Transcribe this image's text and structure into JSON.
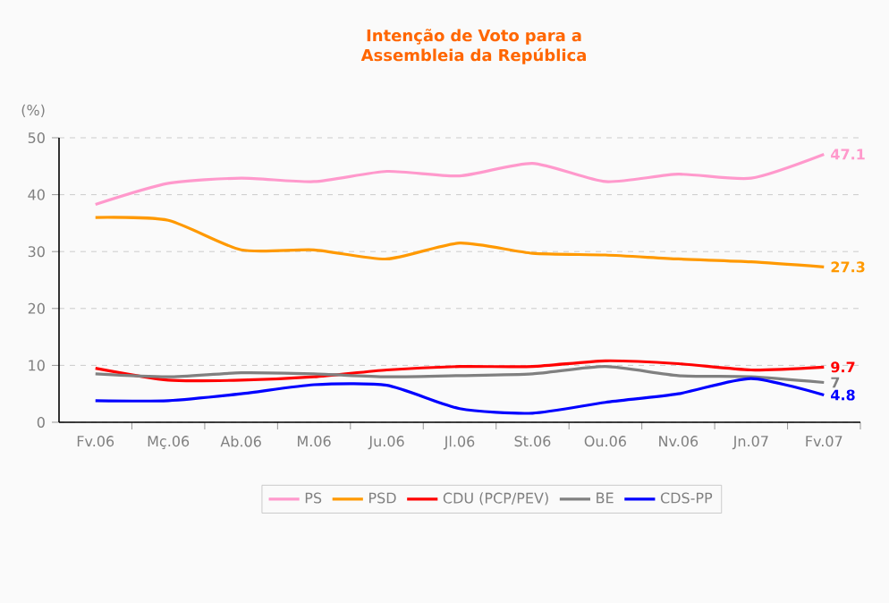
{
  "chart_data": {
    "type": "line",
    "title": "Intenção de Voto para a Assembleia da República",
    "ylabel": "(%)",
    "categories": [
      "Fv.06",
      "Mç.06",
      "Ab.06",
      "M.06",
      "Ju.06",
      "Jl.06",
      "St.06",
      "Ou.06",
      "Nv.06",
      "Jn.07",
      "Fv.07"
    ],
    "series": [
      {
        "name": "PS",
        "color": "#ff99cc",
        "values": [
          38.3,
          42,
          42.9,
          42.3,
          44.1,
          43.3,
          45.5,
          42.3,
          43.6,
          42.9,
          47.1
        ],
        "value_labels": [
          null,
          null,
          null,
          null,
          null,
          null,
          null,
          null,
          null,
          null,
          "47.1"
        ]
      },
      {
        "name": "PSD",
        "color": "#ff9900",
        "values": [
          36,
          35.5,
          30.3,
          30.3,
          28.7,
          31.5,
          29.7,
          29.4,
          28.7,
          28.2,
          27.3
        ],
        "value_labels": [
          null,
          null,
          null,
          null,
          null,
          null,
          null,
          null,
          null,
          null,
          "27.3"
        ]
      },
      {
        "name": "CDU (PCP/PEV)",
        "color": "#ff0000",
        "values": [
          9.5,
          7.4,
          7.4,
          8,
          9.2,
          9.8,
          9.8,
          10.8,
          10.3,
          9.2,
          9.7
        ],
        "value_labels": [
          null,
          null,
          null,
          null,
          null,
          null,
          null,
          null,
          null,
          null,
          "9.7"
        ]
      },
      {
        "name": "BE",
        "color": "#808080",
        "values": [
          8.5,
          8,
          8.7,
          8.5,
          8,
          8.2,
          8.5,
          9.8,
          8.2,
          8,
          7
        ],
        "value_labels": [
          null,
          null,
          null,
          null,
          null,
          null,
          null,
          null,
          null,
          null,
          "7"
        ]
      },
      {
        "name": "CDS-PP",
        "color": "#0000ff",
        "values": [
          3.8,
          3.8,
          5,
          6.6,
          6.5,
          2.4,
          1.6,
          3.5,
          5,
          7.7,
          4.8
        ],
        "value_labels": [
          null,
          null,
          null,
          null,
          null,
          null,
          null,
          null,
          null,
          null,
          "4.8"
        ]
      }
    ],
    "ylim": [
      0,
      50
    ],
    "yticks": [
      0,
      10,
      20,
      30,
      40,
      50
    ],
    "grid": "y",
    "legend": "bottom"
  }
}
